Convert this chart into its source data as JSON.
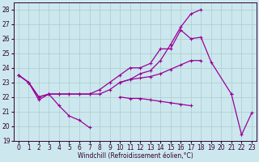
{
  "xlabel": "Windchill (Refroidissement éolien,°C)",
  "x": [
    0,
    1,
    2,
    3,
    4,
    5,
    6,
    7,
    8,
    9,
    10,
    11,
    12,
    13,
    14,
    15,
    16,
    17,
    18,
    19,
    20,
    21,
    22,
    23
  ],
  "series": [
    [
      23.5,
      23.0,
      21.8,
      22.2,
      21.4,
      20.7,
      20.4,
      19.9,
      null,
      null,
      null,
      null,
      null,
      null,
      null,
      null,
      null,
      null,
      null,
      null,
      null,
      null,
      null,
      null
    ],
    [
      23.5,
      23.0,
      22.0,
      22.2,
      22.2,
      22.2,
      22.2,
      22.2,
      22.2,
      22.5,
      23.0,
      23.2,
      23.3,
      23.4,
      23.6,
      23.9,
      24.2,
      24.5,
      24.5,
      null,
      null,
      null,
      null,
      null
    ],
    [
      23.5,
      23.0,
      22.0,
      22.2,
      22.2,
      22.2,
      22.2,
      22.2,
      22.5,
      23.0,
      23.5,
      24.0,
      24.0,
      24.3,
      25.3,
      25.3,
      26.6,
      26.0,
      26.1,
      24.4,
      null,
      22.2,
      null,
      null
    ],
    [
      null,
      null,
      null,
      null,
      null,
      null,
      null,
      null,
      null,
      null,
      23.0,
      23.2,
      23.6,
      23.8,
      24.5,
      25.6,
      26.8,
      27.7,
      28.0,
      null,
      null,
      null,
      null,
      null
    ],
    [
      null,
      null,
      null,
      null,
      null,
      null,
      null,
      null,
      null,
      null,
      22.0,
      21.9,
      21.9,
      21.8,
      21.7,
      21.6,
      21.5,
      21.4,
      null,
      null,
      null,
      null,
      null,
      null
    ],
    [
      null,
      null,
      null,
      null,
      null,
      null,
      null,
      null,
      null,
      null,
      null,
      null,
      null,
      null,
      null,
      null,
      null,
      null,
      null,
      null,
      null,
      22.2,
      19.4,
      20.9
    ]
  ],
  "color": "#990099",
  "bg_color": "#cce8ee",
  "grid_color": "#aacccc",
  "ylim": [
    19,
    28.5
  ],
  "xlim": [
    -0.5,
    23.5
  ],
  "yticks": [
    19,
    20,
    21,
    22,
    23,
    24,
    25,
    26,
    27,
    28
  ],
  "xticks": [
    0,
    1,
    2,
    3,
    4,
    5,
    6,
    7,
    8,
    9,
    10,
    11,
    12,
    13,
    14,
    15,
    16,
    17,
    18,
    19,
    20,
    21,
    22,
    23
  ],
  "tick_fontsize": 5.5,
  "xlabel_fontsize": 5.5
}
